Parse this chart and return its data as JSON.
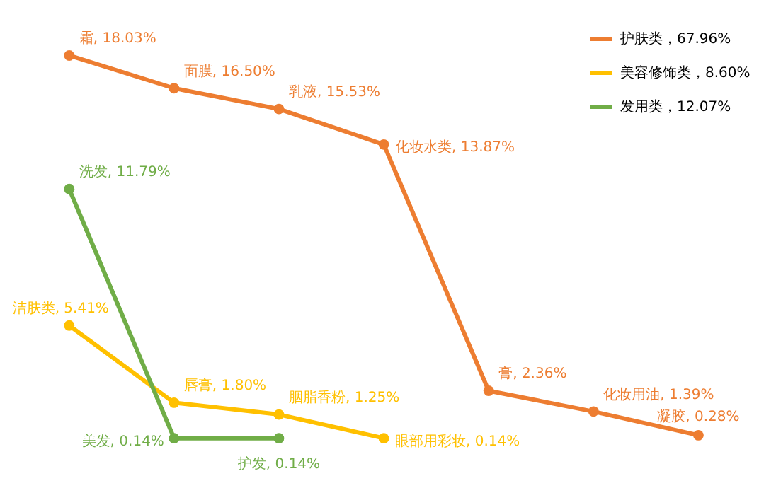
{
  "chart_data": {
    "type": "line",
    "categories": [
      null,
      null,
      null,
      null,
      null,
      null,
      null
    ],
    "relative": false,
    "marker": "circle",
    "line_style": "solid",
    "legend": "top right",
    "grid": false,
    "tick_labels": false,
    "series": [
      {
        "name": "护肤类，67.96%",
        "color": "#ed7d31",
        "values": [
          18.03,
          16.5,
          15.53,
          13.87,
          2.36,
          1.39,
          0.28
        ],
        "value_labels": [
          "霜, 18.03%",
          "面膜, 16.50%",
          "乳液, 15.53%",
          "化妆水类, 13.87%",
          "膏, 2.36%",
          "化妆用油, 1.39%",
          "凝胶, 0.28%"
        ]
      },
      {
        "name": "美容修饰类，8.60%",
        "color": "#ffc000",
        "values": [
          5.41,
          1.8,
          1.25,
          0.14,
          null,
          null,
          null
        ],
        "value_labels": [
          "洁肤类, 5.41%",
          "唇膏, 1.80%",
          "胭脂香粉, 1.25%",
          "眼部用彩妆, 0.14%",
          null,
          null,
          null
        ]
      },
      {
        "name": "发用类，12.07%",
        "color": "#70ad47",
        "values": [
          11.79,
          0.14,
          0.14,
          null,
          null,
          null,
          null
        ],
        "value_labels": [
          "洗发, 11.79%",
          "美发, 0.14%",
          "护发, 0.14%",
          null,
          null,
          null,
          null
        ]
      }
    ]
  }
}
